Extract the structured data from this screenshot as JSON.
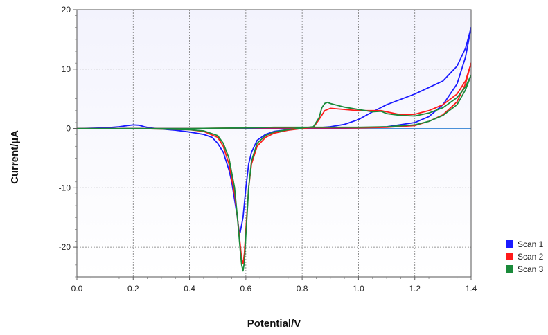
{
  "chart_data": {
    "type": "line",
    "title": "",
    "xlabel": "Potential/V",
    "ylabel": "Current/µA",
    "xlim": [
      0.0,
      1.4
    ],
    "ylim": [
      -25,
      20
    ],
    "x_ticks": [
      "0.0",
      "0.2",
      "0.4",
      "0.6",
      "0.8",
      "1.0",
      "1.2",
      "1.4"
    ],
    "x_tick_values": [
      0.0,
      0.2,
      0.4,
      0.6,
      0.8,
      1.0,
      1.2,
      1.4
    ],
    "y_ticks": [
      "20",
      "10",
      "0",
      "-10",
      "-20"
    ],
    "y_tick_values": [
      20,
      10,
      0,
      -10,
      -20
    ],
    "grid": true,
    "legend_position": "bottom-right",
    "zero_line_color": "#4a90d9",
    "plot_background_top": "#f3f3fd",
    "plot_background_bottom": "#ffffff",
    "series": [
      {
        "name": "Scan 1",
        "color": "#1a1aff",
        "x": [
          0.0,
          0.1,
          0.15,
          0.18,
          0.2,
          0.22,
          0.24,
          0.26,
          0.3,
          0.35,
          0.4,
          0.45,
          0.48,
          0.5,
          0.52,
          0.54,
          0.55,
          0.56,
          0.57,
          0.575,
          0.58,
          0.59,
          0.6,
          0.61,
          0.62,
          0.64,
          0.67,
          0.7,
          0.75,
          0.8,
          0.85,
          0.9,
          0.95,
          1.0,
          1.05,
          1.1,
          1.2,
          1.3,
          1.35,
          1.38,
          1.4,
          1.38,
          1.35,
          1.3,
          1.25,
          1.2,
          1.1,
          1.0,
          0.9,
          0.8,
          0.6,
          0.4,
          0.2,
          0.0
        ],
        "y": [
          0.0,
          0.1,
          0.3,
          0.5,
          0.6,
          0.55,
          0.3,
          0.1,
          -0.1,
          -0.3,
          -0.6,
          -1.0,
          -1.5,
          -2.5,
          -4.0,
          -7.0,
          -9.0,
          -12.0,
          -15.0,
          -17.0,
          -17.5,
          -15.0,
          -10.0,
          -6.0,
          -4.0,
          -2.0,
          -1.0,
          -0.5,
          -0.2,
          0.0,
          0.1,
          0.3,
          0.7,
          1.5,
          2.8,
          4.0,
          5.8,
          8.0,
          10.5,
          13.5,
          17.0,
          12.0,
          7.5,
          4.0,
          2.0,
          1.0,
          0.3,
          0.1,
          0.0,
          0.0,
          0.0,
          0.0,
          0.0,
          0.0
        ]
      },
      {
        "name": "Scan 2",
        "color": "#ff1a1a",
        "x": [
          0.0,
          0.2,
          0.4,
          0.45,
          0.5,
          0.52,
          0.54,
          0.56,
          0.57,
          0.58,
          0.585,
          0.59,
          0.595,
          0.6,
          0.61,
          0.62,
          0.64,
          0.67,
          0.7,
          0.75,
          0.8,
          0.84,
          0.86,
          0.88,
          0.9,
          0.95,
          1.0,
          1.05,
          1.08,
          1.1,
          1.15,
          1.2,
          1.25,
          1.3,
          1.35,
          1.38,
          1.4,
          1.38,
          1.35,
          1.3,
          1.25,
          1.2,
          1.1,
          1.0,
          0.9,
          0.8,
          0.7,
          0.6,
          0.4,
          0.2,
          0.0
        ],
        "y": [
          0.0,
          0.0,
          -0.2,
          -0.5,
          -1.5,
          -3.0,
          -6.0,
          -11.0,
          -15.0,
          -19.5,
          -22.0,
          -22.8,
          -21.0,
          -17.0,
          -10.0,
          -6.0,
          -3.0,
          -1.5,
          -0.8,
          -0.3,
          0.0,
          0.2,
          1.5,
          3.0,
          3.4,
          3.2,
          3.0,
          3.0,
          3.0,
          2.8,
          2.3,
          2.4,
          3.0,
          4.0,
          5.8,
          8.0,
          11.0,
          7.5,
          4.5,
          2.3,
          1.2,
          0.5,
          0.2,
          0.1,
          0.1,
          0.1,
          0.1,
          0.1,
          0.0,
          0.0,
          0.0
        ]
      },
      {
        "name": "Scan 3",
        "color": "#1a8a3a",
        "x": [
          0.0,
          0.2,
          0.4,
          0.45,
          0.5,
          0.52,
          0.54,
          0.56,
          0.57,
          0.58,
          0.585,
          0.59,
          0.595,
          0.6,
          0.61,
          0.62,
          0.64,
          0.67,
          0.7,
          0.75,
          0.8,
          0.84,
          0.86,
          0.87,
          0.88,
          0.89,
          0.9,
          0.95,
          1.0,
          1.05,
          1.08,
          1.1,
          1.15,
          1.2,
          1.25,
          1.3,
          1.35,
          1.38,
          1.4,
          1.38,
          1.35,
          1.3,
          1.25,
          1.2,
          1.1,
          1.0,
          0.9,
          0.8,
          0.7,
          0.6,
          0.4,
          0.2,
          0.0
        ],
        "y": [
          0.0,
          0.0,
          -0.2,
          -0.4,
          -1.2,
          -2.5,
          -5.0,
          -10.0,
          -15.0,
          -20.5,
          -23.0,
          -24.0,
          -22.5,
          -18.0,
          -10.0,
          -5.5,
          -2.5,
          -1.2,
          -0.6,
          -0.2,
          0.1,
          0.3,
          1.8,
          3.5,
          4.2,
          4.4,
          4.2,
          3.6,
          3.2,
          2.8,
          2.9,
          2.5,
          2.2,
          2.1,
          2.6,
          3.5,
          5.2,
          7.0,
          9.0,
          6.5,
          4.0,
          2.2,
          1.2,
          0.6,
          0.3,
          0.2,
          0.2,
          0.2,
          0.2,
          0.1,
          0.0,
          0.0,
          0.0
        ]
      }
    ]
  }
}
